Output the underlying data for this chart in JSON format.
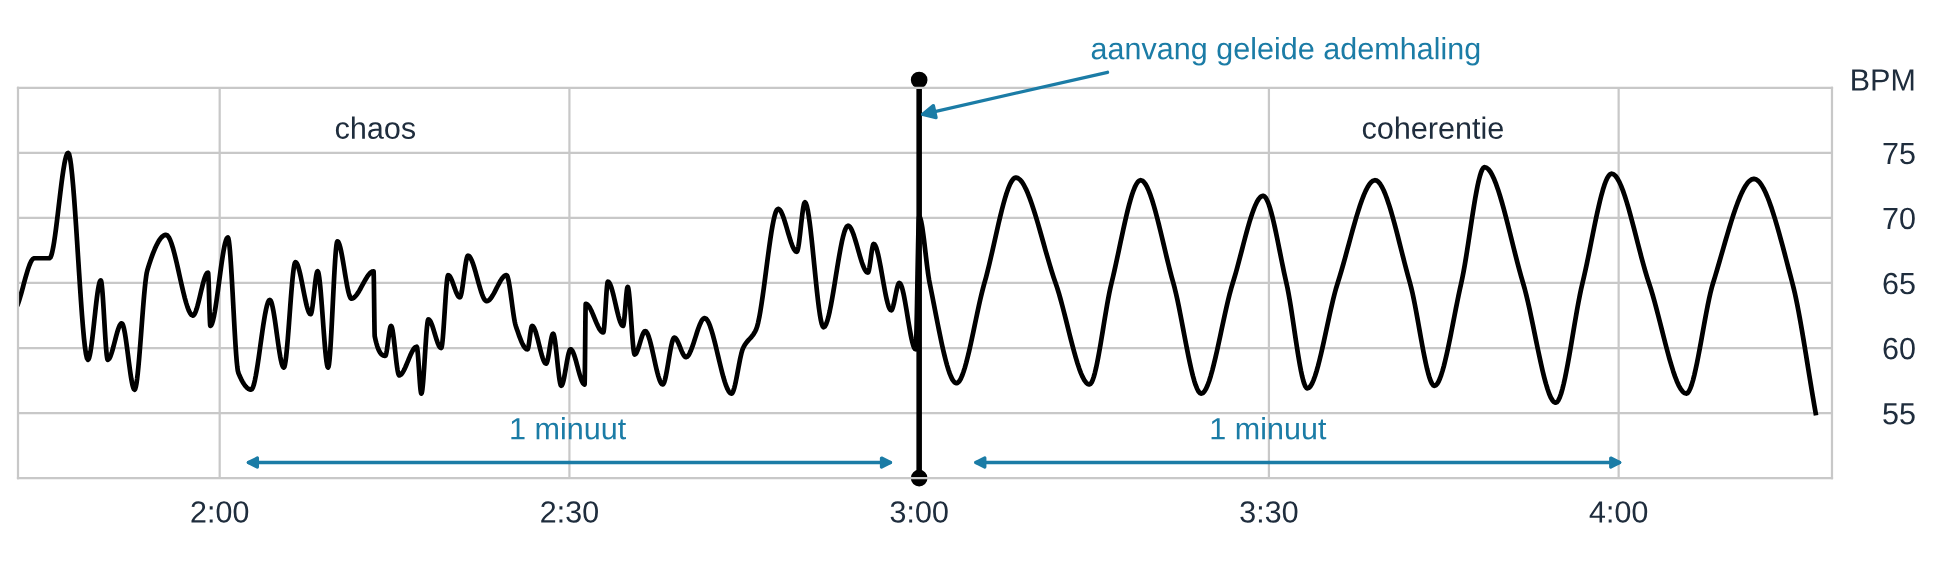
{
  "chart_data": {
    "type": "line",
    "ylabel": "BPM",
    "x": [
      102.7,
      104.1,
      105.4,
      107.0,
      108.7,
      109.8,
      110.4,
      111.6,
      112.7,
      113.8,
      115.4,
      117.7,
      119.0,
      119.2,
      120.7,
      121.6,
      122.7,
      124.3,
      125.5,
      126.5,
      127.8,
      128.4,
      129.3,
      130.1,
      131.3,
      133.2,
      133.3,
      134.2,
      134.7,
      135.4,
      136.9,
      137.3,
      137.9,
      139.0,
      139.6,
      140.6,
      141.3,
      142.9,
      144.6,
      145.4,
      146.4,
      146.8,
      148.0,
      148.6,
      149.3,
      150.1,
      151.3,
      151.4,
      152.9,
      153.3,
      154.6,
      155.0,
      155.6,
      156.5,
      158.0,
      159.0,
      160.0,
      161.6,
      163.9,
      164.9,
      166.0,
      167.9,
      169.5,
      170.2,
      171.8,
      173.9,
      175.6,
      176.1,
      177.6,
      178.3,
      179.7,
      180.0,
      180.9,
      183.2,
      185.6,
      188.3,
      191.7,
      194.6,
      196.5,
      199.0,
      201.8,
      204.2,
      206.9,
      209.5,
      211.5,
      213.3,
      215.9,
      219.1,
      222.1,
      224.2,
      226.5,
      228.5,
      231.8,
      234.6,
      236.9,
      239.4,
      242.6,
      245.8,
      248.1,
      251.6,
      254.9,
      256.9
    ],
    "series": [
      {
        "color": "#000000",
        "values": [
          63.4,
          66.9,
          66.9,
          75.0,
          59.1,
          65.2,
          59.1,
          61.9,
          56.8,
          66.0,
          68.7,
          62.5,
          65.8,
          61.7,
          68.5,
          58.1,
          56.8,
          63.7,
          58.5,
          66.6,
          62.6,
          65.9,
          58.5,
          68.2,
          63.8,
          65.9,
          60.9,
          59.4,
          61.7,
          57.9,
          60.1,
          56.5,
          62.2,
          60.0,
          65.6,
          63.9,
          67.1,
          63.6,
          65.6,
          61.7,
          59.9,
          61.7,
          58.8,
          61.1,
          57.1,
          59.9,
          57.2,
          63.4,
          61.2,
          65.1,
          61.7,
          64.7,
          59.5,
          61.3,
          57.2,
          60.8,
          59.3,
          62.3,
          56.5,
          60.0,
          61.4,
          70.7,
          67.4,
          71.2,
          61.6,
          69.4,
          65.8,
          68.0,
          62.9,
          65.0,
          59.9,
          70.1,
          65.0,
          57.3,
          65.0,
          73.1,
          65.0,
          57.2,
          65.0,
          72.9,
          65.0,
          56.5,
          65.0,
          71.7,
          65.0,
          56.9,
          65.0,
          72.9,
          65.0,
          57.1,
          65.0,
          73.9,
          65.0,
          55.8,
          65.0,
          73.4,
          65.0,
          56.5,
          65.0,
          73.0,
          65.0,
          55.0
        ]
      }
    ],
    "xlim": [
      102.7,
      258.3
    ],
    "ylim": [
      50,
      80
    ],
    "xticks": [
      {
        "value": 120,
        "label": "2:00"
      },
      {
        "value": 150,
        "label": "2:30"
      },
      {
        "value": 180,
        "label": "3:00"
      },
      {
        "value": 210,
        "label": "3:30"
      },
      {
        "value": 240,
        "label": "4:00"
      }
    ],
    "yticks": [
      55,
      60,
      65,
      70,
      75
    ],
    "grid": true,
    "legend": false,
    "marker": "none",
    "line_style": "solid",
    "ref_lines": [
      {
        "axis": "x",
        "value": 180,
        "color": "#000000"
      }
    ],
    "annotations": [
      {
        "text": "aanvang geleide ademhaling",
        "x": 180,
        "y": 77.9
      },
      "chaos",
      "coherentie",
      "1 minuut",
      "1 minuut"
    ]
  }
}
